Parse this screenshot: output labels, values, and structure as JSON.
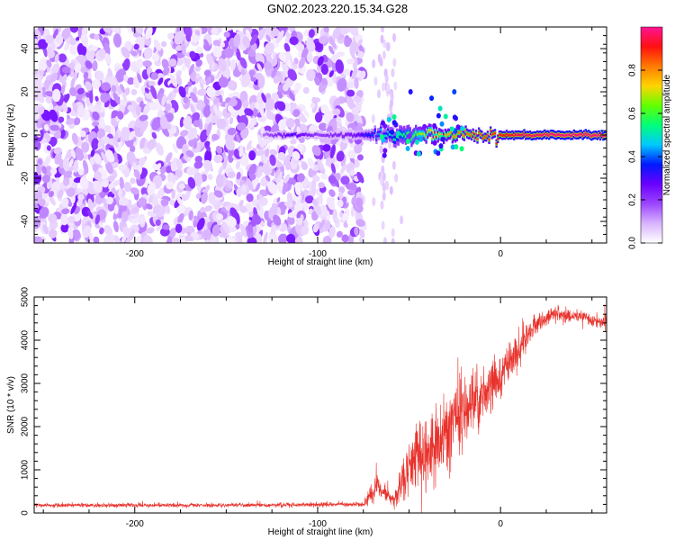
{
  "title": "GN02.2023.220.15.34.G28",
  "colors": {
    "spectrogram_colormap": [
      "#ffffff",
      "#d9b3ff",
      "#9a46ff",
      "#6a00ff",
      "#0019ff",
      "#00c8ff",
      "#00ff7a",
      "#62ff00",
      "#ffd400",
      "#ff7a00",
      "#ff1010",
      "#ff1493"
    ],
    "snr_line": "#e8312b",
    "frame": "#000000"
  },
  "chart_data": [
    {
      "type": "heatmap",
      "title": "",
      "xlabel": "Height of straight line (km)",
      "ylabel": "Frequency (Hz)",
      "xlim": [
        -255,
        58
      ],
      "ylim": [
        -50,
        50
      ],
      "x_ticks": [
        "-200",
        "-100",
        "0"
      ],
      "y_ticks": [
        "-40",
        "-20",
        "0",
        "20",
        "40"
      ],
      "grid": false,
      "colorbar": {
        "label": "Normalized spectral amplitude",
        "range": [
          0.0,
          1.0
        ],
        "ticks": [
          "0.0",
          "0.2",
          "0.4",
          "0.6",
          "0.8"
        ],
        "colormap": "rainbow"
      },
      "features": {
        "noise_region_x": [
          -255,
          -75
        ],
        "noise_amplitude": [
          0.0,
          0.25
        ],
        "signal_line_frequency": 0,
        "signal_line_start_x": -130,
        "signal_profile": [
          {
            "x": -130,
            "amplitude": 0.15,
            "width_hz": 3
          },
          {
            "x": -115,
            "amplitude": 0.3,
            "width_hz": 3
          },
          {
            "x": -100,
            "amplitude": 0.2,
            "width_hz": 3
          },
          {
            "x": -80,
            "amplitude": 0.25,
            "width_hz": 4
          },
          {
            "x": -65,
            "amplitude": 0.45,
            "width_hz": 6
          },
          {
            "x": -55,
            "amplitude": 0.55,
            "width_hz": 8
          },
          {
            "x": -40,
            "amplitude": 0.7,
            "width_hz": 6
          },
          {
            "x": -25,
            "amplitude": 0.8,
            "width_hz": 5
          },
          {
            "x": -10,
            "amplitude": 0.85,
            "width_hz": 4
          },
          {
            "x": 10,
            "amplitude": 0.95,
            "width_hz": 4
          },
          {
            "x": 30,
            "amplitude": 0.98,
            "width_hz": 4
          },
          {
            "x": 58,
            "amplitude": 0.98,
            "width_hz": 4
          }
        ]
      }
    },
    {
      "type": "line",
      "title": "",
      "xlabel": "Height of straight line (km)",
      "ylabel": "SNR (10 * v/v)",
      "xlim": [
        -255,
        58
      ],
      "ylim": [
        0,
        5000
      ],
      "x_ticks": [
        "-200",
        "-100",
        "0"
      ],
      "y_ticks": [
        "0",
        "1000",
        "2000",
        "3000",
        "4000",
        "5000"
      ],
      "grid": false,
      "series": [
        {
          "color": "#e8312b",
          "envelope": [
            {
              "x": -255,
              "mean": 180,
              "spread": 50
            },
            {
              "x": -150,
              "mean": 180,
              "spread": 55
            },
            {
              "x": -75,
              "mean": 200,
              "spread": 60
            },
            {
              "x": -68,
              "mean": 600,
              "spread": 300
            },
            {
              "x": -63,
              "mean": 400,
              "spread": 250
            },
            {
              "x": -58,
              "mean": 300,
              "spread": 200
            },
            {
              "x": -50,
              "mean": 1200,
              "spread": 900
            },
            {
              "x": -40,
              "mean": 1400,
              "spread": 1000
            },
            {
              "x": -30,
              "mean": 2000,
              "spread": 1000
            },
            {
              "x": -20,
              "mean": 2400,
              "spread": 900
            },
            {
              "x": -10,
              "mean": 2700,
              "spread": 700
            },
            {
              "x": 0,
              "mean": 3100,
              "spread": 600
            },
            {
              "x": 10,
              "mean": 3800,
              "spread": 400
            },
            {
              "x": 20,
              "mean": 4400,
              "spread": 250
            },
            {
              "x": 30,
              "mean": 4650,
              "spread": 200
            },
            {
              "x": 40,
              "mean": 4550,
              "spread": 180
            },
            {
              "x": 58,
              "mean": 4400,
              "spread": 180
            }
          ]
        }
      ]
    }
  ]
}
